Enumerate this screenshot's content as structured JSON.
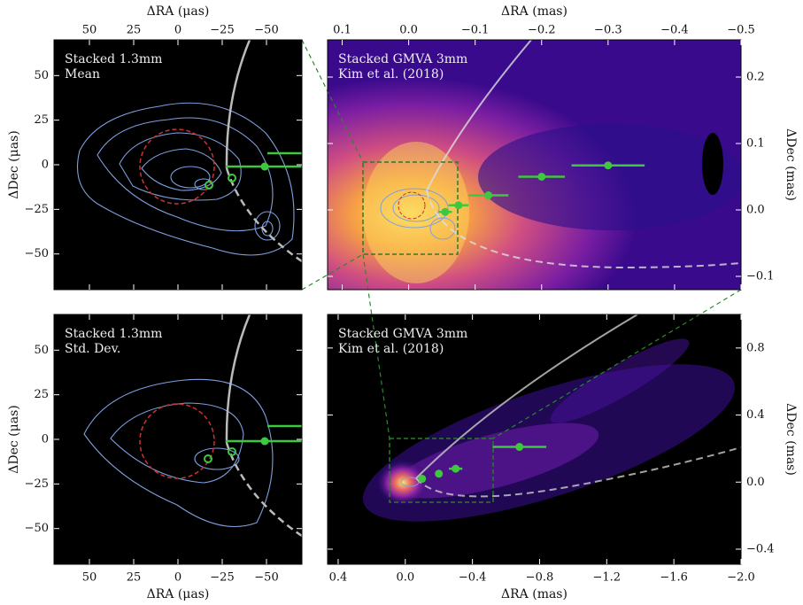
{
  "chart_data": [
    {
      "type": "scatter",
      "annotation": [
        "Stacked 1.3mm",
        "Mean"
      ],
      "xlabel": "ΔRA (μas)",
      "ylabel": "ΔDec (μas)",
      "xlim": [
        70,
        -70
      ],
      "ylim": [
        -70,
        70
      ],
      "xticks": [
        50,
        25,
        0,
        {
          "value": -25,
          "label": "−25"
        },
        {
          "value": -50,
          "label": "−50"
        }
      ],
      "yticks": [
        50,
        25,
        0,
        {
          "value": -25,
          "label": "−25"
        },
        {
          "value": -50,
          "label": "−50"
        }
      ],
      "color": "#3ec83e",
      "points": {
        "x": [
          -49
        ],
        "y": [
          -1
        ],
        "xerr": [
          22
        ]
      }
    },
    {
      "type": "scatter",
      "annotation": [
        "Stacked GMVA 3mm",
        "Kim et al. (2018)"
      ],
      "xlabel": "ΔRA (mas)",
      "ylabel": "ΔDec (mas)",
      "xlim": [
        0.122,
        -0.5
      ],
      "ylim": [
        -0.12,
        0.256
      ],
      "xticks": [
        0.1,
        {
          "value": 0,
          "label": "0.0"
        },
        {
          "value": -0.1,
          "label": "−0.1"
        },
        {
          "value": -0.2,
          "label": "−0.2"
        },
        {
          "value": -0.3,
          "label": "−0.3"
        },
        {
          "value": -0.4,
          "label": "−0.4"
        },
        {
          "value": -0.5,
          "label": "−0.5"
        }
      ],
      "yticks": [
        0.2,
        0.1,
        {
          "value": 0,
          "label": "0.0"
        },
        {
          "value": -0.1,
          "label": "−0.1"
        }
      ],
      "color": "#3ec83e",
      "points": {
        "x": [
          -0.3,
          -0.2,
          -0.12,
          -0.075,
          -0.055
        ],
        "y": [
          0.067,
          0.05,
          0.022,
          0.007,
          -0.003
        ],
        "xerr": [
          0.055,
          0.035,
          0.03,
          0.015,
          0.01
        ]
      }
    },
    {
      "type": "scatter",
      "annotation": [
        "Stacked 1.3mm",
        "Std. Dev."
      ],
      "xlabel": "ΔRA (μas)",
      "ylabel": "ΔDec (μas)",
      "xlim": [
        70,
        -70
      ],
      "ylim": [
        -70,
        70
      ],
      "xticks": [
        50,
        25,
        0,
        {
          "value": -25,
          "label": "−25"
        },
        {
          "value": -50,
          "label": "−50"
        }
      ],
      "yticks": [
        50,
        25,
        0,
        {
          "value": -25,
          "label": "−25"
        },
        {
          "value": -50,
          "label": "−50"
        }
      ],
      "color": "#3ec83e",
      "points": {
        "x": [
          -49
        ],
        "y": [
          -1
        ],
        "xerr": [
          22
        ]
      }
    },
    {
      "type": "scatter",
      "annotation": [
        "Stacked GMVA 3mm",
        "Kim et al. (2018)"
      ],
      "xlabel": "ΔRA (mas)",
      "ylabel": "ΔDec (mas)",
      "xlim": [
        0.463,
        -2.0
      ],
      "ylim": [
        -0.49,
        1.0
      ],
      "xticks": [
        0.4,
        {
          "value": 0,
          "label": "0.0"
        },
        {
          "value": -0.4,
          "label": "−0.4"
        },
        {
          "value": -0.8,
          "label": "−0.8"
        },
        {
          "value": -1.2,
          "label": "−1.2"
        },
        {
          "value": -1.6,
          "label": "−1.6"
        },
        {
          "value": -2.0,
          "label": "−2.0"
        }
      ],
      "yticks": [
        0.8,
        0.4,
        {
          "value": 0,
          "label": "0.0"
        },
        {
          "value": -0.4,
          "label": "−0.4"
        }
      ],
      "color": "#3ec83e",
      "points": {
        "x": [
          -0.68,
          -0.3,
          -0.2,
          -0.1
        ],
        "y": [
          0.21,
          0.08,
          0.05,
          0.02
        ],
        "xerr": [
          0.16,
          0.04,
          0.02,
          0.02
        ]
      }
    }
  ]
}
